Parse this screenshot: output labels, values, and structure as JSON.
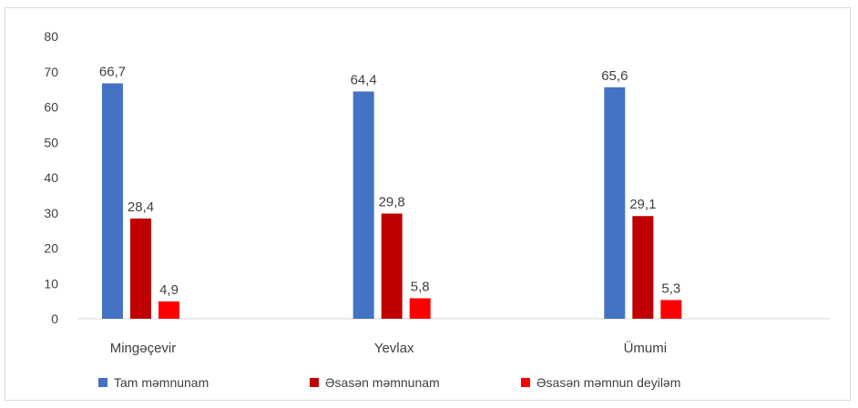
{
  "chart_data": {
    "type": "bar",
    "categories": [
      "Mingəçevir",
      "Yevlax",
      "Ümumi"
    ],
    "series": [
      {
        "name": "Tam məmnunam",
        "color": "#4472c4",
        "values": [
          66.7,
          64.4,
          65.6
        ],
        "labels": [
          "66,7",
          "64,4",
          "65,6"
        ]
      },
      {
        "name": "Əsasən məmnunam",
        "color": "#c00000",
        "values": [
          28.4,
          29.8,
          29.1
        ],
        "labels": [
          "28,4",
          "29,8",
          "29,1"
        ]
      },
      {
        "name": "Əsasən məmnun deyiləm",
        "color": "#ff0000",
        "values": [
          4.9,
          5.8,
          5.3
        ],
        "labels": [
          "4,9",
          "5,8",
          "5,3"
        ]
      }
    ],
    "ylim": [
      0,
      80
    ],
    "yticks": [
      0,
      10,
      20,
      30,
      40,
      50,
      60,
      70,
      80
    ],
    "grid": false,
    "legend_position": "bottom",
    "title": "",
    "xlabel": "",
    "ylabel": ""
  }
}
